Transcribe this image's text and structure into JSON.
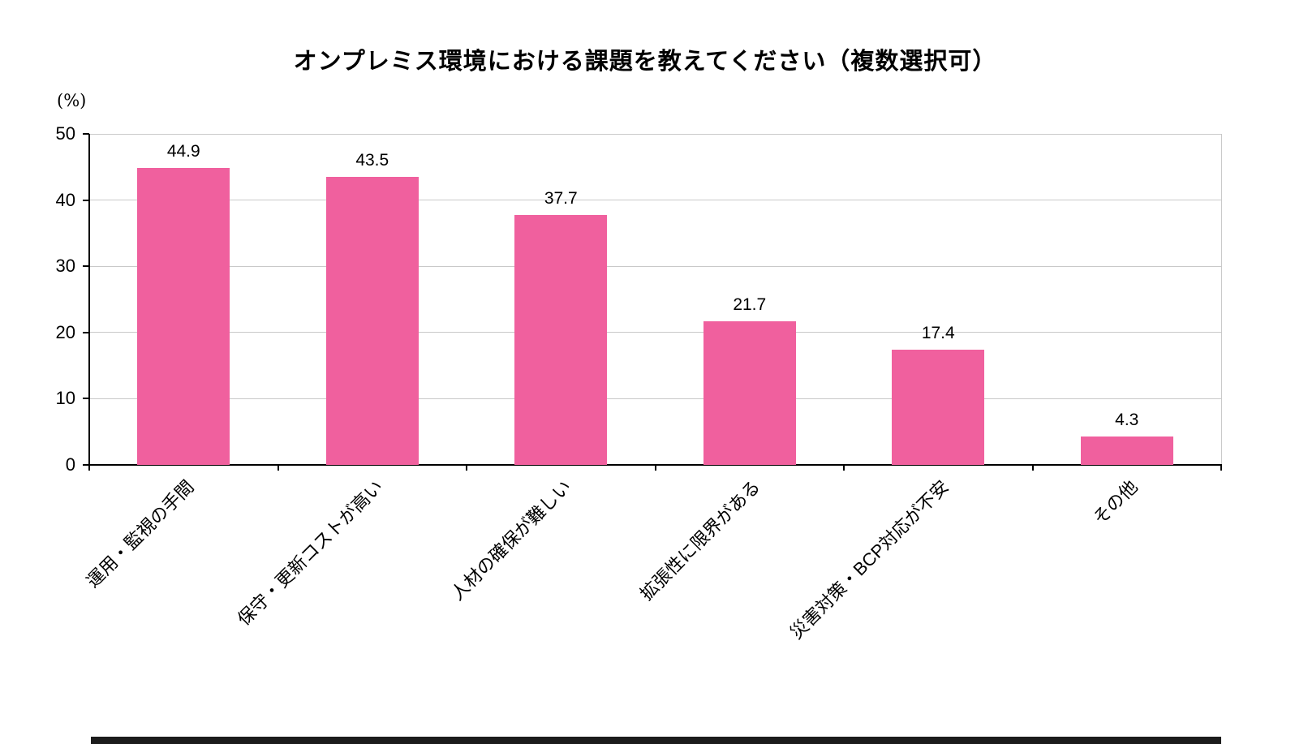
{
  "chart_data": {
    "type": "bar",
    "title": "オンプレミス環境における課題を教えてください（複数選択可）",
    "unit_label": "(%)",
    "categories": [
      "運用・監視の手間",
      "保守・更新コストが高い",
      "人材の確保が難しい",
      "拡張性に限界がある",
      "災害対策・BCP対応が不安",
      "その他"
    ],
    "values": [
      44.9,
      43.5,
      37.7,
      21.7,
      17.4,
      4.3
    ],
    "value_labels": [
      "44.9",
      "43.5",
      "37.7",
      "21.7",
      "17.4",
      "4.3"
    ],
    "ylim": [
      0,
      50
    ],
    "yticks": [
      0,
      10,
      20,
      30,
      40,
      50
    ],
    "grid": true,
    "legend": "none",
    "bar_color": "#f0609e",
    "gridline_color": "#c9c9c9",
    "axis_color": "#000000",
    "background_color": "#ffffff"
  }
}
